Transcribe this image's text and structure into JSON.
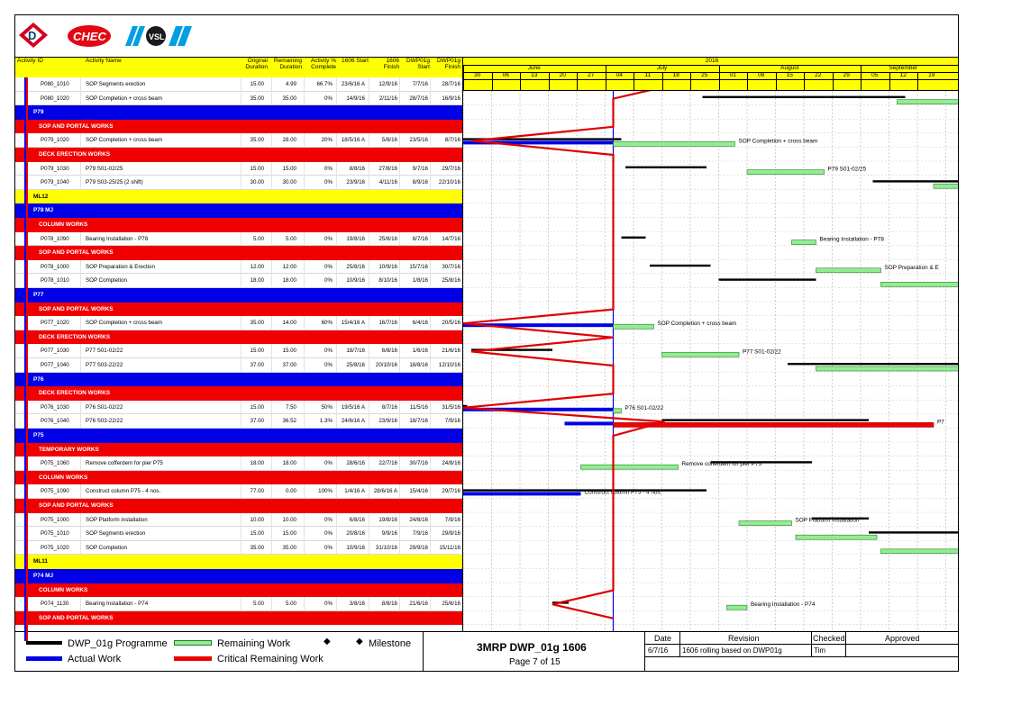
{
  "header": {
    "activity_id": "Activity ID",
    "activity_name": "Activity Name",
    "orig_dur": "Original Duration",
    "rem_dur": "Remaining Duration",
    "act_pct": "Activity % Complete",
    "start1606": "1606 Start",
    "finish1606": "1606 Finish",
    "dwp_start": "DWP01g Start",
    "dwp_finish": "DWP01g Finish"
  },
  "timeline": {
    "year": "2016",
    "months": [
      "June",
      "July",
      "August",
      "September"
    ],
    "weeks": [
      "30",
      "06",
      "13",
      "20",
      "27",
      "04",
      "11",
      "18",
      "25",
      "01",
      "08",
      "15",
      "22",
      "29",
      "05",
      "12",
      "19"
    ]
  },
  "rows": [
    {
      "type": "act",
      "id": "P080_1010",
      "name": "SOP Segments erection",
      "od": "15.00",
      "rd": "4.99",
      "pct": "66.7%",
      "s": "23/6/16 A",
      "f": "12/9/16",
      "ds": "7/7/16",
      "df": "28/7/16"
    },
    {
      "type": "act",
      "id": "P080_1020",
      "name": "SOP Completion + cross beam",
      "od": "35.00",
      "rd": "35.00",
      "pct": "0%",
      "s": "14/9/16",
      "f": "2/11/16",
      "ds": "28/7/16",
      "df": "16/9/16"
    },
    {
      "type": "grp",
      "color": "blue",
      "label": "P79"
    },
    {
      "type": "grp",
      "color": "red",
      "label": "SOP AND PORTAL WORKS"
    },
    {
      "type": "act",
      "id": "P079_1020",
      "name": "SOP Completion + cross beam",
      "od": "35.00",
      "rd": "28.00",
      "pct": "20%",
      "s": "18/5/16 A",
      "f": "5/8/16",
      "ds": "23/5/16",
      "df": "8/7/16"
    },
    {
      "type": "grp",
      "color": "red",
      "label": "DECK ERECTION WORKS"
    },
    {
      "type": "act",
      "id": "P079_1030",
      "name": "P79 S01-02/25",
      "od": "15.00",
      "rd": "15.00",
      "pct": "0%",
      "s": "8/8/16",
      "f": "27/8/16",
      "ds": "9/7/16",
      "df": "29/7/16"
    },
    {
      "type": "act",
      "id": "P079_1040",
      "name": "P79 S03-25/25 (2 shift)",
      "od": "30.00",
      "rd": "30.00",
      "pct": "0%",
      "s": "23/9/16",
      "f": "4/11/16",
      "ds": "8/9/16",
      "df": "22/10/16"
    },
    {
      "type": "grp",
      "color": "yel",
      "label": "ML12"
    },
    {
      "type": "grp",
      "color": "blue",
      "label": "P78 MJ"
    },
    {
      "type": "grp",
      "color": "red",
      "label": "COLUMN WORKS"
    },
    {
      "type": "act",
      "id": "P078_1090",
      "name": "Bearing Installation - P78",
      "od": "5.00",
      "rd": "5.00",
      "pct": "0%",
      "s": "19/8/16",
      "f": "25/8/16",
      "ds": "8/7/16",
      "df": "14/7/16"
    },
    {
      "type": "grp",
      "color": "red",
      "label": "SOP AND PORTAL WORKS"
    },
    {
      "type": "act",
      "id": "P078_1000",
      "name": "SOP Preparation & Erection",
      "od": "12.00",
      "rd": "12.00",
      "pct": "0%",
      "s": "25/8/16",
      "f": "10/9/16",
      "ds": "15/7/16",
      "df": "30/7/16"
    },
    {
      "type": "act",
      "id": "P078_1010",
      "name": "SOP Completion",
      "od": "18.00",
      "rd": "18.00",
      "pct": "0%",
      "s": "10/9/16",
      "f": "8/10/16",
      "ds": "1/8/16",
      "df": "25/8/16"
    },
    {
      "type": "grp",
      "color": "blue",
      "label": "P77"
    },
    {
      "type": "grp",
      "color": "red",
      "label": "SOP AND PORTAL WORKS"
    },
    {
      "type": "act",
      "id": "P077_1020",
      "name": "SOP Completion + cross beam",
      "od": "35.00",
      "rd": "14.00",
      "pct": "60%",
      "s": "15/4/16 A",
      "f": "16/7/16",
      "ds": "6/4/16",
      "df": "20/5/16"
    },
    {
      "type": "grp",
      "color": "red",
      "label": "DECK ERECTION WORKS"
    },
    {
      "type": "act",
      "id": "P077_1030",
      "name": "P77 S01-02/22",
      "od": "15.00",
      "rd": "15.00",
      "pct": "0%",
      "s": "18/7/16",
      "f": "6/8/16",
      "ds": "1/6/16",
      "df": "21/6/16"
    },
    {
      "type": "act",
      "id": "P077_1040",
      "name": "P77 S03-22/22",
      "od": "37.00",
      "rd": "37.00",
      "pct": "0%",
      "s": "25/8/16",
      "f": "20/10/16",
      "ds": "18/8/16",
      "df": "12/10/16"
    },
    {
      "type": "grp",
      "color": "blue",
      "label": "P76"
    },
    {
      "type": "grp",
      "color": "red",
      "label": "DECK ERECTION WORKS"
    },
    {
      "type": "act",
      "id": "P076_1030",
      "name": "P76 S01-02/22",
      "od": "15.00",
      "rd": "7.50",
      "pct": "50%",
      "s": "19/5/16 A",
      "f": "8/7/16",
      "ds": "11/5/16",
      "df": "31/5/16"
    },
    {
      "type": "act",
      "id": "P076_1040",
      "name": "P76 S03-22/22",
      "od": "37.00",
      "rd": "36.52",
      "pct": "1.3%",
      "s": "24/6/16 A",
      "f": "23/9/16",
      "ds": "18/7/16",
      "df": "7/9/16"
    },
    {
      "type": "grp",
      "color": "blue",
      "label": "P75"
    },
    {
      "type": "grp",
      "color": "red",
      "label": "TEMPORARY WORKS"
    },
    {
      "type": "act",
      "id": "P075_1060",
      "name": "Remove cofferdem for pier P75",
      "od": "18.00",
      "rd": "18.00",
      "pct": "0%",
      "s": "28/6/16",
      "f": "22/7/16",
      "ds": "30/7/16",
      "df": "24/8/16"
    },
    {
      "type": "grp",
      "color": "red",
      "label": "COLUMN WORKS"
    },
    {
      "type": "act",
      "id": "P075_1090",
      "name": "Construct column P75 - 4 nos.",
      "od": "77.00",
      "rd": "0.00",
      "pct": "100%",
      "s": "1/4/16 A",
      "f": "28/6/16 A",
      "ds": "15/4/16",
      "df": "29/7/16"
    },
    {
      "type": "grp",
      "color": "red",
      "label": "SOP AND PORTAL WORKS"
    },
    {
      "type": "act",
      "id": "P075_1000",
      "name": "SOP Platform installation",
      "od": "10.00",
      "rd": "10.00",
      "pct": "0%",
      "s": "6/8/16",
      "f": "19/8/16",
      "ds": "24/8/16",
      "df": "7/9/16"
    },
    {
      "type": "act",
      "id": "P075_1010",
      "name": "SOP Segments erection",
      "od": "15.00",
      "rd": "15.00",
      "pct": "0%",
      "s": "20/8/16",
      "f": "9/9/16",
      "ds": "7/9/16",
      "df": "29/9/16"
    },
    {
      "type": "act",
      "id": "P075_1020",
      "name": "SOP Completion",
      "od": "35.00",
      "rd": "35.00",
      "pct": "0%",
      "s": "10/9/16",
      "f": "31/10/16",
      "ds": "29/9/16",
      "df": "15/11/16"
    },
    {
      "type": "grp",
      "color": "yel",
      "label": "ML11"
    },
    {
      "type": "grp",
      "color": "blue",
      "label": "P74 MJ"
    },
    {
      "type": "grp",
      "color": "red",
      "label": "COLUMN WORKS"
    },
    {
      "type": "act",
      "id": "P074_1130",
      "name": "Bearing Installation - P74",
      "od": "5.00",
      "rd": "5.00",
      "pct": "0%",
      "s": "3/8/16",
      "f": "8/8/16",
      "ds": "21/6/16",
      "df": "25/6/16"
    },
    {
      "type": "grp",
      "color": "red",
      "label": "SOP AND PORTAL WORKS"
    }
  ],
  "gantt_labels": [
    "SOP Segments er",
    "SOP Completion + cross beam",
    "P79 S01-02/25",
    "Bearing Installation - P78",
    "SOP Preparation & E",
    "SOP Completion + cross beam",
    "P77 S01-02/22",
    "P76 S01-02/22",
    "P7",
    "Remove cofferdem for pier P75",
    "Construct column P75 - 4 nos.",
    "SOP Platform installation",
    "Bearing Installation - P74"
  ],
  "legend": {
    "programme": "DWP_01g Programme",
    "remaining": "Remaining Work",
    "milestone": "Milestone",
    "actual": "Actual Work",
    "critical": "Critical Remaining Work"
  },
  "title": {
    "main": "3MRP DWP_01g 1606",
    "page": "Page 7 of 15"
  },
  "revision_table": {
    "headers": [
      "Date",
      "Revision",
      "Checked",
      "Approved"
    ],
    "row": [
      "6/7/16",
      "1606 rolling based on DWP01g",
      "Tim",
      ""
    ]
  },
  "logos": [
    "D",
    "CHEC",
    "VSL"
  ],
  "colors": {
    "yellow": "#ffff00",
    "blue": "#0000e6",
    "red": "#f00000",
    "green": "#90ee90",
    "black": "#000000"
  }
}
